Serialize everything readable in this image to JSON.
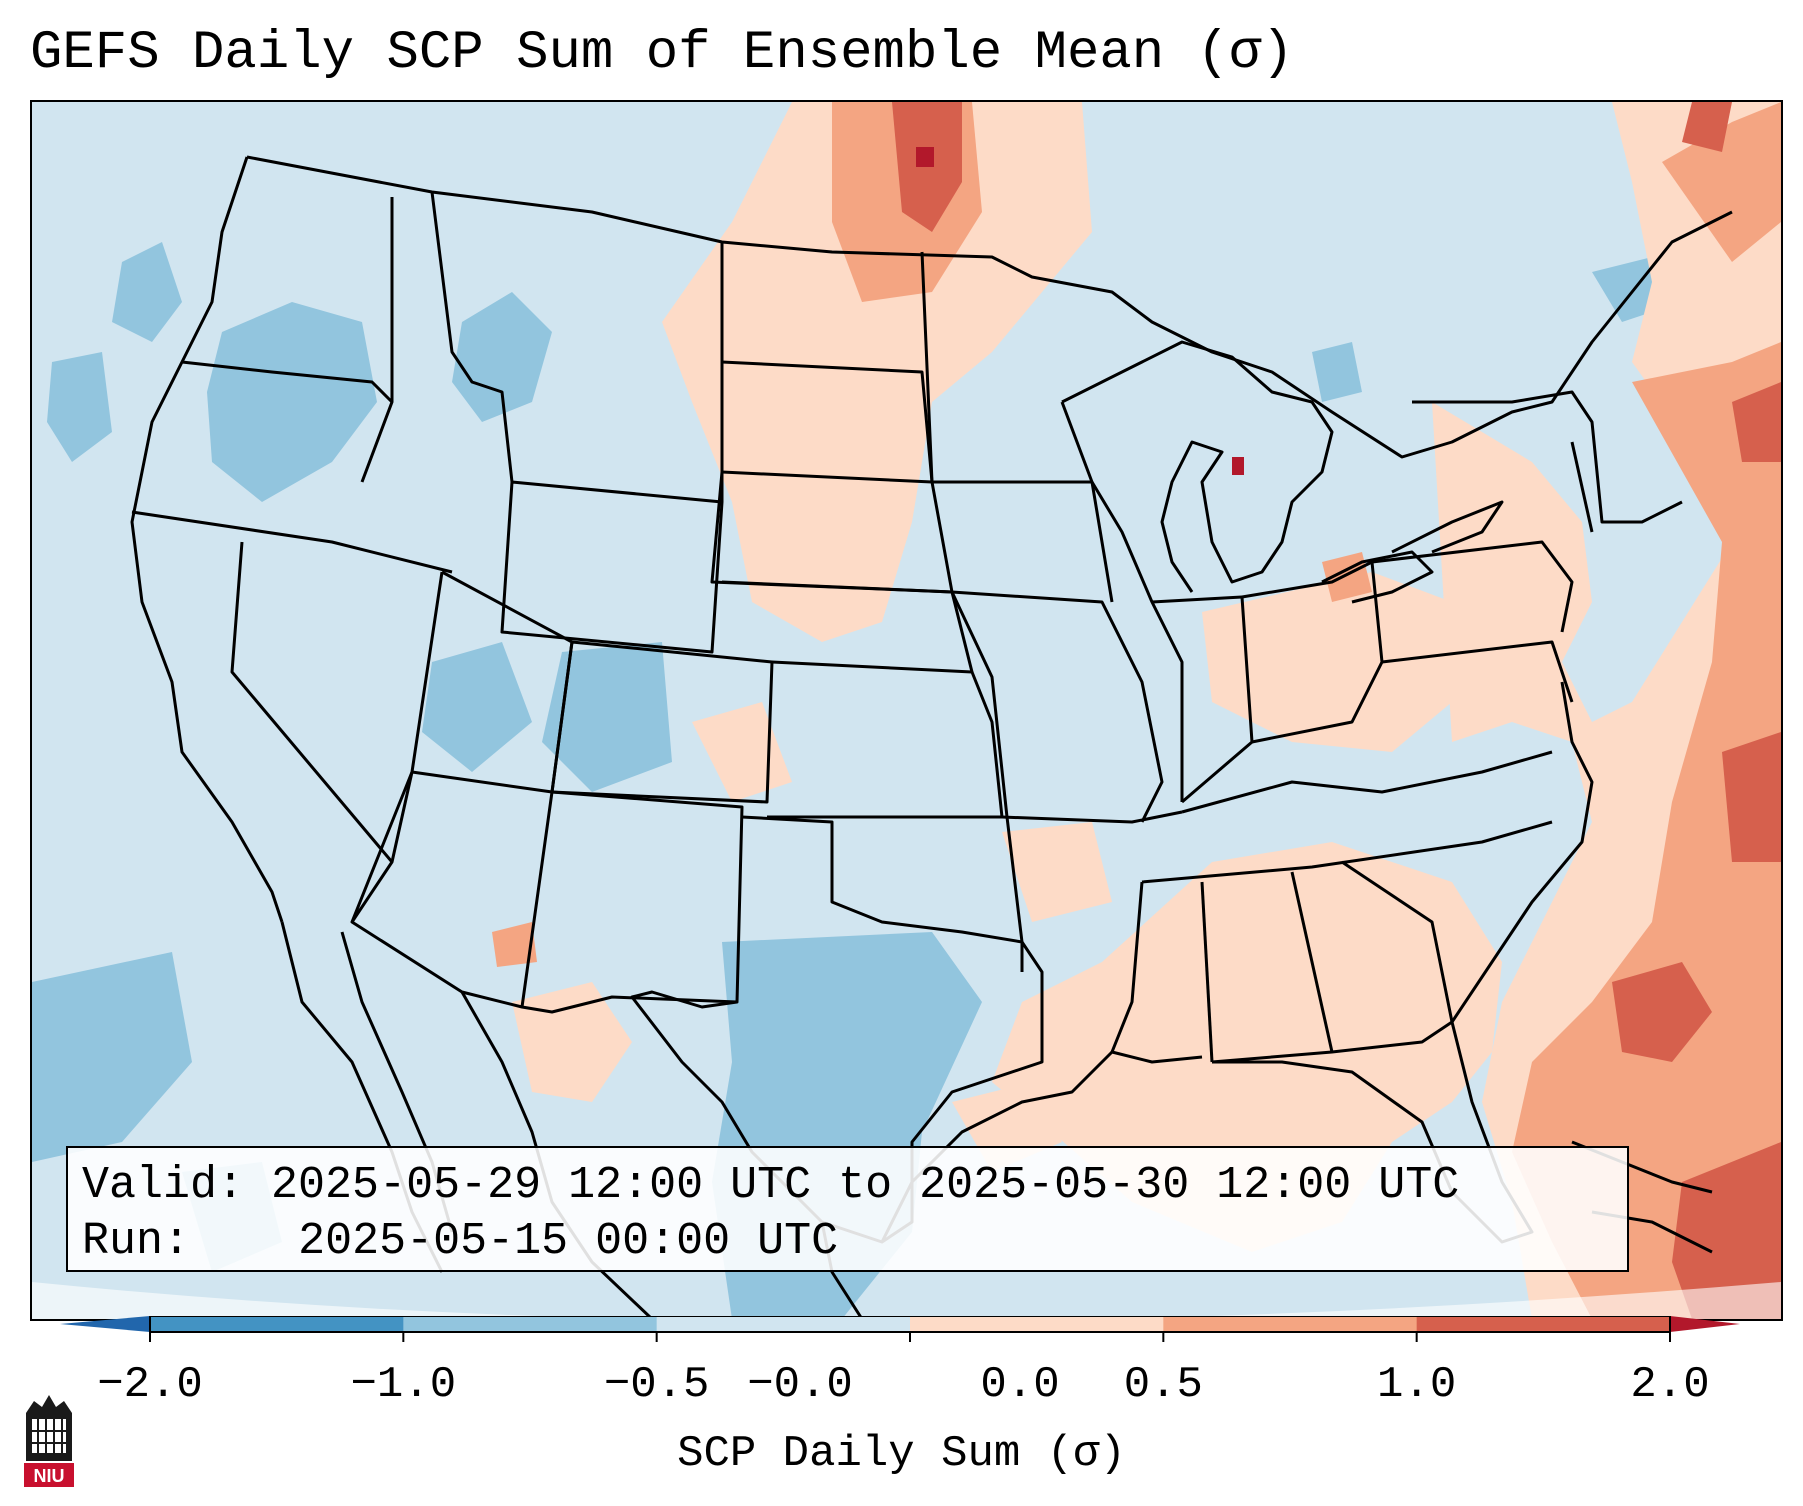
{
  "title": "GEFS Daily SCP Sum of Ensemble Mean (σ)",
  "info": {
    "valid_label": "Valid:",
    "valid_value": "2025-05-29 12:00 UTC to 2025-05-30 12:00 UTC",
    "run_label": "Run:",
    "run_value": "2025-05-15 00:00 UTC"
  },
  "colorbar": {
    "label": "SCP Daily Sum (σ)",
    "ticks": [
      "−2.0",
      "−1.0",
      "−0.5",
      "−0.0",
      "0.0",
      "0.5",
      "1.0",
      "2.0"
    ],
    "colors": [
      "#4393c3",
      "#92c5de",
      "#d1e5f0",
      "#fddbc7",
      "#f4a582",
      "#d6604d"
    ],
    "extend_low_color": "#2166ac",
    "extend_high_color": "#b2182b"
  },
  "map": {
    "region": "Contiguous United States",
    "background_color": "#d1e5f0",
    "boundaries_color": "#000000"
  },
  "logo": {
    "text": "NIU",
    "color": "#c8102e"
  }
}
